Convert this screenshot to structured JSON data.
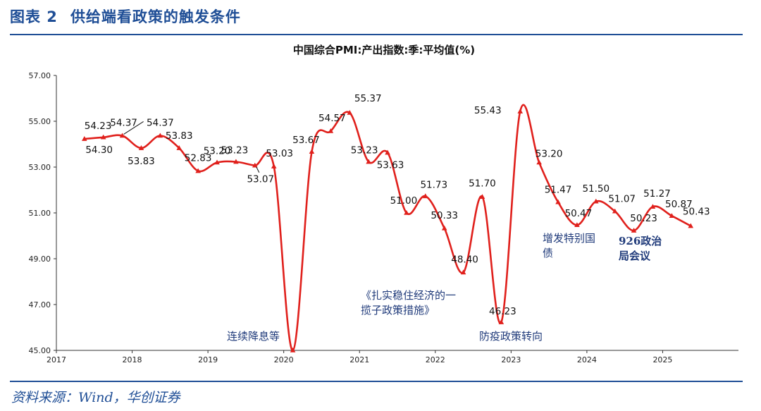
{
  "figure": {
    "label": "图表 2",
    "title": "供给端看政策的触发条件",
    "source": "资料来源：Wind，华创证券"
  },
  "chart_data": {
    "type": "line",
    "title": "中国综合PMI:产出指数:季:平均值(%)",
    "ylim": [
      45,
      57
    ],
    "yticks": [
      "45.00",
      "47.00",
      "49.00",
      "51.00",
      "53.00",
      "55.00",
      "57.00"
    ],
    "xlim": [
      2017,
      2026
    ],
    "xticks": [
      "2017",
      "2018",
      "2019",
      "2020",
      "2021",
      "2022",
      "2023",
      "2024",
      "2025"
    ],
    "grid": false,
    "series": [
      {
        "color": "#e0201c",
        "points": [
          {
            "x": 2017.37,
            "y": 54.23,
            "label": "54.23"
          },
          {
            "x": 2017.62,
            "y": 54.3,
            "label": "54.30"
          },
          {
            "x": 2017.87,
            "y": 54.37,
            "label": "54.37"
          },
          {
            "x": 2018.12,
            "y": 53.83,
            "label": "53.83"
          },
          {
            "x": 2018.37,
            "y": 54.37,
            "label": "54.37"
          },
          {
            "x": 2018.62,
            "y": 53.83,
            "label": "53.83"
          },
          {
            "x": 2018.87,
            "y": 52.83,
            "label": "52.83"
          },
          {
            "x": 2019.12,
            "y": 53.2,
            "label": "53.20"
          },
          {
            "x": 2019.37,
            "y": 53.23,
            "label": "53.23"
          },
          {
            "x": 2019.62,
            "y": 53.07,
            "label": "53.07"
          },
          {
            "x": 2019.87,
            "y": 53.03,
            "label": "53.03"
          },
          {
            "x": 2020.12,
            "y": 45.0,
            "label": ""
          },
          {
            "x": 2020.37,
            "y": 53.67,
            "label": "53.67"
          },
          {
            "x": 2020.62,
            "y": 54.57,
            "label": "54.57"
          },
          {
            "x": 2020.87,
            "y": 55.37,
            "label": "55.37"
          },
          {
            "x": 2021.12,
            "y": 53.23,
            "label": "53.23"
          },
          {
            "x": 2021.37,
            "y": 53.63,
            "label": "53.63"
          },
          {
            "x": 2021.62,
            "y": 51.0,
            "label": "51.00"
          },
          {
            "x": 2021.87,
            "y": 51.73,
            "label": "51.73"
          },
          {
            "x": 2022.12,
            "y": 50.33,
            "label": "50.33"
          },
          {
            "x": 2022.37,
            "y": 48.4,
            "label": "48.40"
          },
          {
            "x": 2022.62,
            "y": 51.7,
            "label": "51.70"
          },
          {
            "x": 2022.87,
            "y": 46.23,
            "label": "46.23"
          },
          {
            "x": 2023.12,
            "y": 55.43,
            "label": "55.43"
          },
          {
            "x": 2023.37,
            "y": 53.2,
            "label": "53.20"
          },
          {
            "x": 2023.62,
            "y": 51.47,
            "label": "51.47"
          },
          {
            "x": 2023.87,
            "y": 50.47,
            "label": "50.47"
          },
          {
            "x": 2024.12,
            "y": 51.5,
            "label": "51.50"
          },
          {
            "x": 2024.37,
            "y": 51.07,
            "label": "51.07"
          },
          {
            "x": 2024.62,
            "y": 50.23,
            "label": "50.23"
          },
          {
            "x": 2024.87,
            "y": 51.27,
            "label": "51.27"
          },
          {
            "x": 2025.12,
            "y": 50.87,
            "label": "50.87"
          },
          {
            "x": 2025.37,
            "y": 50.43,
            "label": "50.43"
          }
        ]
      }
    ],
    "annotations": [
      {
        "lines": [
          "连续降息等"
        ],
        "color": "#1f3a7a",
        "bold": false
      },
      {
        "lines": [
          "《扎实稳住经济的一",
          "揽子政策措施》"
        ],
        "color": "#1f3a7a",
        "bold": false
      },
      {
        "lines": [
          "防疫政策转向"
        ],
        "color": "#1f3a7a",
        "bold": false
      },
      {
        "lines": [
          "增发特别国",
          "债"
        ],
        "color": "#1f3a7a",
        "bold": false
      },
      {
        "lines": [
          "926政治",
          "局会议"
        ],
        "color": "#1f3a7a",
        "bold": true
      }
    ]
  }
}
